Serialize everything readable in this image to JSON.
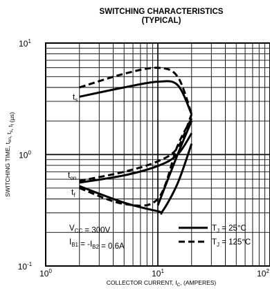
{
  "chart_data": {
    "type": "line",
    "title": "SWITCHING CHARACTERISTICS",
    "subtitle": "(TYPICAL)",
    "xlabel": "COLLECTOR CURRENT, I_C, (AMPERES)",
    "ylabel": "SWITCHING TIME, t_on, t_s, t_f (µs)",
    "x_scale": "log",
    "y_scale": "log",
    "xlim": [
      1,
      100
    ],
    "ylim": [
      0.1,
      10
    ],
    "grid": true,
    "x_ticks": [
      {
        "base": "10",
        "exp": "0",
        "value": 1
      },
      {
        "base": "10",
        "exp": "1",
        "value": 10
      },
      {
        "base": "10",
        "exp": "2",
        "value": 100
      }
    ],
    "y_ticks": [
      {
        "base": "10",
        "exp": "-1",
        "value": 0.1
      },
      {
        "base": "10",
        "exp": "0",
        "value": 1
      },
      {
        "base": "10",
        "exp": "1",
        "value": 10
      }
    ],
    "series_labels": {
      "ts": {
        "main": "t",
        "sub": "s"
      },
      "ton": {
        "main": "t",
        "sub": "on"
      },
      "tf": {
        "main": "t",
        "sub": "f"
      }
    },
    "legend": [
      {
        "text_main": "T",
        "text_sub": "J",
        "text_rest": " = 25°C",
        "style": "solid"
      },
      {
        "text_main": "T",
        "text_sub": "J",
        "text_rest": " = 125°C",
        "style": "dashed"
      }
    ],
    "conditions": [
      "V_CC = 300V",
      "I_B1 = -I_B2 = 0.6A"
    ],
    "series": [
      {
        "key": "ts",
        "temp": "25°C",
        "style": "solid",
        "x": [
          2,
          5,
          10,
          15,
          20
        ],
        "y": [
          3.3,
          4.0,
          4.5,
          4.2,
          2.3
        ]
      },
      {
        "key": "ts",
        "temp": "125°C",
        "style": "dashed",
        "x": [
          2,
          5,
          10,
          15,
          20
        ],
        "y": [
          4.0,
          5.3,
          6.0,
          5.0,
          2.3
        ]
      },
      {
        "key": "ton",
        "temp": "25°C",
        "style": "solid",
        "x": [
          2,
          5,
          10,
          15,
          20
        ],
        "y": [
          0.56,
          0.65,
          0.79,
          1.0,
          1.55
        ]
      },
      {
        "key": "ton",
        "temp": "125°C",
        "style": "dashed",
        "x": [
          2,
          5,
          10,
          15,
          20
        ],
        "y": [
          0.58,
          0.7,
          0.87,
          1.15,
          2.3
        ]
      },
      {
        "key": "tf",
        "temp": "25°C",
        "style": "solid",
        "x": [
          2,
          5,
          10,
          11,
          15,
          20
        ],
        "y": [
          0.52,
          0.37,
          0.31,
          0.31,
          0.55,
          1.25
        ]
      },
      {
        "key": "tf",
        "temp": "125°C",
        "style": "dashed",
        "x": [
          2,
          5,
          10,
          15,
          20
        ],
        "y": [
          0.5,
          0.36,
          0.4,
          1.2,
          2.1
        ]
      },
      {
        "key": "ton",
        "temp": "25°C",
        "style": "solid",
        "x": [
          10,
          15,
          20
        ],
        "y": [
          0.35,
          1.0,
          2.0
        ]
      }
    ]
  }
}
